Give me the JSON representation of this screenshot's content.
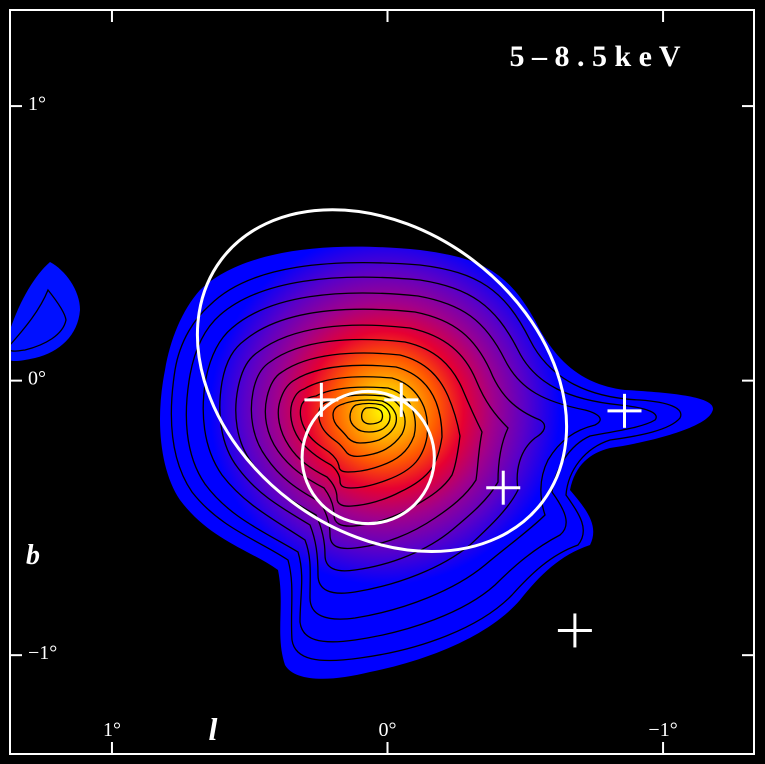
{
  "title": "5 – 8 . 5   k e V",
  "axes": {
    "x_label": "l",
    "y_label": "b",
    "x_ticks": [
      {
        "value": 1,
        "label": "1°"
      },
      {
        "value": 0,
        "label": "0°"
      },
      {
        "value": -1,
        "label": "−1°"
      }
    ],
    "y_ticks": [
      {
        "value": 1,
        "label": "1°"
      },
      {
        "value": 0,
        "label": "0°"
      },
      {
        "value": -1,
        "label": "−1°"
      }
    ],
    "x_range": [
      1.37,
      -1.33
    ],
    "y_range": [
      1.35,
      -1.36
    ]
  },
  "markers": [
    {
      "l": 0.24,
      "b": -0.07
    },
    {
      "l": -0.05,
      "b": -0.07
    },
    {
      "l": -0.42,
      "b": -0.39
    },
    {
      "l": -0.86,
      "b": -0.11
    },
    {
      "l": -0.68,
      "b": -0.91
    }
  ],
  "regions": [
    {
      "shape": "ellipse",
      "l": 0.02,
      "b": 0.0,
      "semi_axis_l": 0.73,
      "semi_axis_b": 0.55,
      "angle": -37
    },
    {
      "shape": "circle",
      "l": 0.07,
      "b": -0.28,
      "radius": 0.24
    }
  ],
  "colors": {
    "background": "#000000",
    "frame": "#ffffff",
    "contour": "#000000",
    "colormap": [
      "#0000ff",
      "#5a00c8",
      "#a0008c",
      "#e60032",
      "#ff5a00",
      "#ffb400",
      "#ffff00"
    ]
  }
}
